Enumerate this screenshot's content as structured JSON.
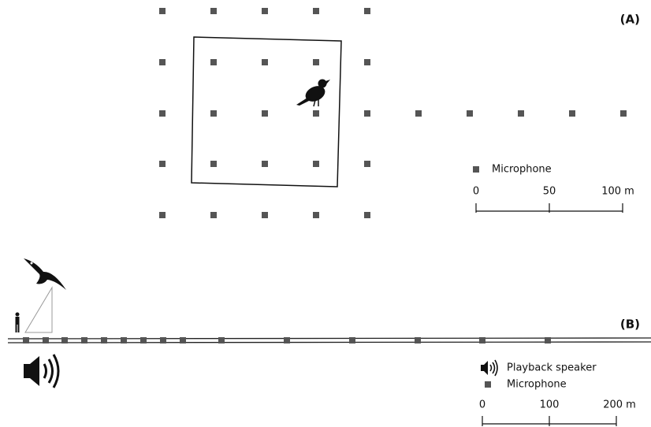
{
  "panel_a": {
    "label": "(A)",
    "legend": {
      "microphone": "Microphone"
    },
    "scale": {
      "labels": [
        "0",
        "50",
        "100 m"
      ]
    }
  },
  "panel_b": {
    "label": "(B)",
    "legend": {
      "speaker": "Playback speaker",
      "microphone": "Microphone"
    },
    "scale": {
      "labels": [
        "0",
        "100",
        "200 m"
      ]
    }
  }
}
